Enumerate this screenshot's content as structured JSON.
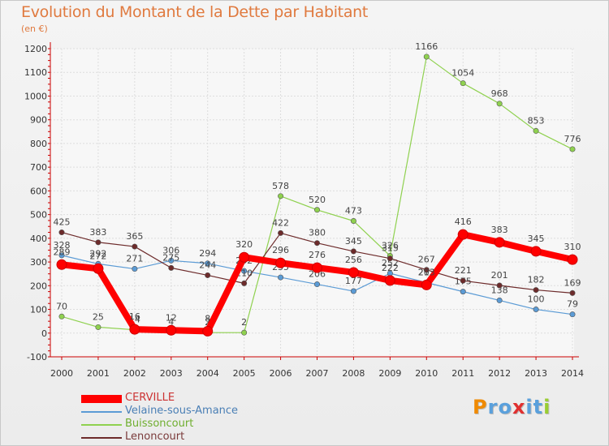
{
  "title": "Evolution du Montant de la Dette par Habitant",
  "subtitle": "(en €)",
  "logo": {
    "letters": [
      "P",
      "r",
      "o",
      "x",
      "i",
      "t",
      "i"
    ],
    "colors": [
      "#f08a00",
      "#5aa0dc",
      "#5aa0dc",
      "#e03030",
      "#5aa0dc",
      "#5aa0dc",
      "#9acd32"
    ]
  },
  "chart_data": {
    "type": "line",
    "title": "Evolution du Montant de la Dette par Habitant",
    "subtitle": "(en €)",
    "xlabel": "",
    "ylabel": "",
    "x": [
      2000,
      2001,
      2002,
      2003,
      2004,
      2005,
      2006,
      2007,
      2008,
      2009,
      2010,
      2011,
      2012,
      2013,
      2014
    ],
    "ylim": [
      -100,
      1200
    ],
    "yticks": [
      -100,
      0,
      100,
      200,
      300,
      400,
      500,
      600,
      700,
      800,
      900,
      1000,
      1100,
      1200
    ],
    "grid": true,
    "legend_position": "bottom-left",
    "series": [
      {
        "name": "Velaine-sous-Amance",
        "color": "#5b9bd5",
        "width": 1.2,
        "values": [
          328,
          292,
          271,
          306,
          294,
          262,
          235,
          206,
          177,
          252,
          213,
          175,
          138,
          100,
          79
        ],
        "labels": [
          "328",
          "292",
          "271",
          "306",
          "294",
          "262",
          "235",
          "206",
          "177",
          "252",
          "213",
          "175",
          "138",
          "100",
          "79"
        ],
        "label_pos": "above"
      },
      {
        "name": "Buissoncourt",
        "color": "#8fd14f",
        "width": 1.2,
        "values": [
          70,
          25,
          14,
          4,
          2,
          2,
          578,
          520,
          473,
          326,
          1166,
          1054,
          968,
          853,
          776
        ],
        "labels": [
          "70",
          "25",
          "14",
          "4",
          "2",
          "2",
          "578",
          "520",
          "473",
          "326",
          "1166",
          "1054",
          "968",
          "853",
          "776"
        ],
        "label_pos": "above"
      },
      {
        "name": "Lenoncourt",
        "color": "#6d2b2b",
        "width": 1.2,
        "values": [
          425,
          383,
          365,
          275,
          244,
          210,
          422,
          380,
          345,
          315,
          267,
          221,
          201,
          182,
          169
        ],
        "labels": [
          "425",
          "383",
          "365",
          "275",
          "244",
          "210",
          "422",
          "380",
          "345",
          "315",
          "267",
          "221",
          "201",
          "182",
          "169"
        ],
        "label_pos": "above"
      },
      {
        "name": "CERVILLE",
        "color": "#ff0000",
        "width": 8,
        "values": [
          289,
          272,
          16,
          12,
          8,
          320,
          296,
          276,
          256,
          222,
          203,
          416,
          383,
          345,
          310
        ],
        "labels": [
          "289",
          "272",
          "16",
          "12",
          "8",
          "320",
          "296",
          "276",
          "256",
          "222",
          "203",
          "416",
          "383",
          "345",
          "310"
        ],
        "label_pos": "above"
      }
    ],
    "legend_order": [
      "CERVILLE",
      "Velaine-sous-Amance",
      "Buissoncourt",
      "Lenoncourt"
    ]
  }
}
